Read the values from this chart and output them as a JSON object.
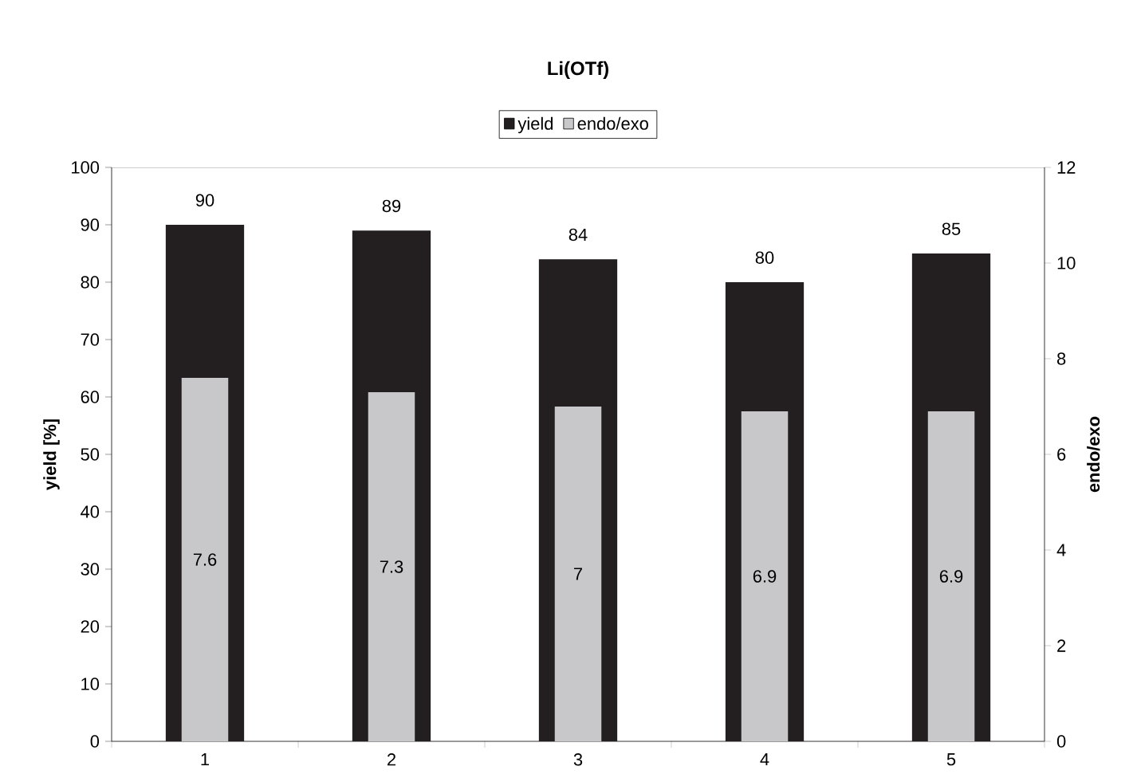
{
  "chart_data": {
    "type": "bar",
    "title": "Li(OTf)",
    "ylabel": "yield [%]",
    "y2label": "endo/exo",
    "categories": [
      "1",
      "2",
      "3",
      "4",
      "5"
    ],
    "series": [
      {
        "name": "yield",
        "color": "#231f20",
        "values": [
          90,
          89,
          84,
          80,
          85
        ],
        "value_labels": [
          "90",
          "89",
          "84",
          "80",
          "85"
        ]
      },
      {
        "name": "endo/exo",
        "color": "#c8c8ca",
        "axis": "y2",
        "values": [
          7.6,
          7.3,
          7,
          6.9,
          6.9
        ],
        "value_labels": [
          "7.6",
          "7.3",
          "7",
          "6.9",
          "6.9"
        ]
      }
    ],
    "ylim": [
      0,
      100
    ],
    "yticks": [
      0,
      10,
      20,
      30,
      40,
      50,
      60,
      70,
      80,
      90,
      100
    ],
    "y2lim": [
      0,
      12
    ],
    "y2ticks": [
      0,
      2,
      4,
      6,
      8,
      10,
      12
    ],
    "legend": "top",
    "grid": false
  }
}
